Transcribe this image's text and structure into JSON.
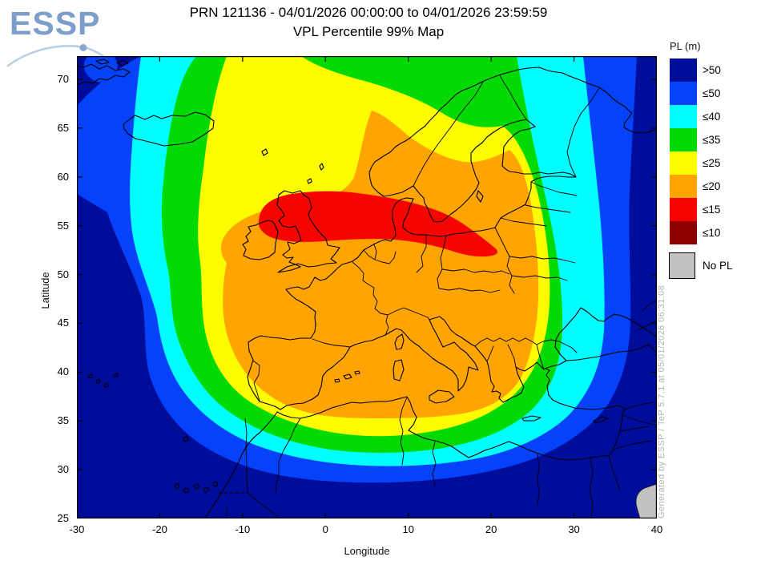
{
  "logo": {
    "text": "ESSP"
  },
  "title": {
    "line1": "PRN 121136 - 04/01/2026 00:00:00 to 04/01/2026 23:59:59",
    "line2": "VPL Percentile 99% Map"
  },
  "map": {
    "xlabel": "Longitude",
    "ylabel": "Latitude",
    "lon_ticks": [
      "-30",
      "-20",
      "-10",
      "0",
      "10",
      "20",
      "30",
      "40"
    ],
    "lat_ticks": [
      "70",
      "65",
      "60",
      "55",
      "50",
      "45",
      "40",
      "35",
      "30",
      "25"
    ],
    "extent": {
      "lon_min": -30,
      "lon_max": 40,
      "lat_min": 25,
      "lat_max": 72.4
    }
  },
  "legend": {
    "title": "PL (m)",
    "entries": [
      {
        "label": ">50",
        "color": "#000d9b"
      },
      {
        "label": "≤50",
        "color": "#0442fc"
      },
      {
        "label": "≤40",
        "color": "#00fdff"
      },
      {
        "label": "≤35",
        "color": "#00da00"
      },
      {
        "label": "≤25",
        "color": "#fffc00"
      },
      {
        "label": "≤20",
        "color": "#ffa400"
      },
      {
        "label": "≤15",
        "color": "#f80400"
      },
      {
        "label": "≤10",
        "color": "#8c0000"
      }
    ],
    "no_pl": {
      "label": "No PL",
      "color": "#c2c2c2"
    }
  },
  "watermark": "Generated by ESSP / TeP 5.7.1 at 05/01/2026 06:31:08",
  "colors": {
    "logo_blue": "#7d9ecb",
    "swoosh_blue": "#b9cfe5",
    "coastline": "#000000",
    "watermark_gray": "#b2b2b2"
  }
}
